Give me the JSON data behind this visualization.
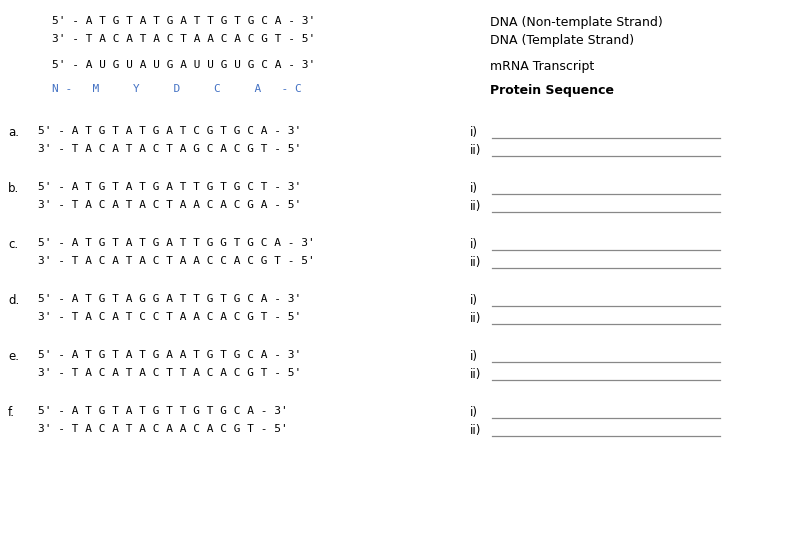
{
  "bg_color": "#ffffff",
  "text_color": "#000000",
  "mono_font": "DejaVu Sans Mono",
  "sans_font": "DejaVu Sans",
  "header": {
    "dna_nontemplate": "5' - A T G T A T G A T T G T G C A - 3'",
    "dna_template": "3' - T A C A T A C T A A C A C G T - 5'",
    "mrna": "5' - A U G U A U G A U U G U G C A - 3'",
    "protein": "N -   M     Y     D     C     A   - C",
    "label_nontemplate": "DNA (Non-template Strand)",
    "label_template": "DNA (Template Strand)",
    "label_mrna": "mRNA Transcript",
    "label_protein": "Protein Sequence"
  },
  "questions": [
    {
      "letter": "a.",
      "line1": "5' - A T G T A T G A T C G T G C A - 3'",
      "line2": "3' - T A C A T A C T A G C A C G T - 5'"
    },
    {
      "letter": "b.",
      "line1": "5' - A T G T A T G A T T G T G C T - 3'",
      "line2": "3' - T A C A T A C T A A C A C G A - 5'"
    },
    {
      "letter": "c.",
      "line1": "5' - A T G T A T G A T T G G T G C A - 3'",
      "line2": "3' - T A C A T A C T A A C C A C G T - 5'"
    },
    {
      "letter": "d.",
      "line1": "5' - A T G T A G G A T T G T G C A - 3'",
      "line2": "3' - T A C A T C C T A A C A C G T - 5'"
    },
    {
      "letter": "e.",
      "line1": "5' - A T G T A T G A A T G T G C A - 3'",
      "line2": "3' - T A C A T A C T T A C A C G T - 5'"
    },
    {
      "letter": "f.",
      "line1": "5' - A T G T A T G T T G T G C A - 3'",
      "line2": "3' - T A C A T A C A A C A C G T - 5'"
    }
  ]
}
